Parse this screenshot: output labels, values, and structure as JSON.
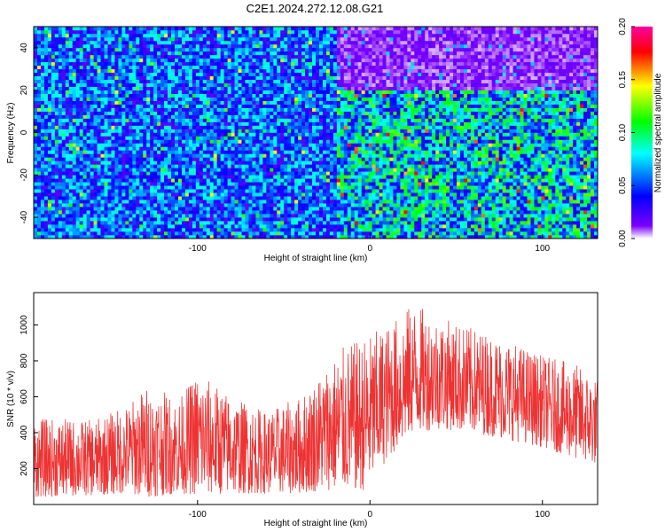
{
  "title": "C2E1.2024.272.12.08.G21",
  "chart_data": [
    {
      "type": "heatmap",
      "title": "C2E1.2024.272.12.08.G21",
      "xlabel": "Height of straight line (km)",
      "ylabel": "Frequency (Hz)",
      "xlim": [
        -195,
        132
      ],
      "ylim": [
        -50,
        50
      ],
      "x_ticks": [
        -100,
        0,
        100
      ],
      "y_ticks": [
        -40,
        -20,
        0,
        20,
        40
      ],
      "colorbar": {
        "label": "Normalized spectral amplitude",
        "range": [
          0.0,
          0.2
        ],
        "ticks": [
          "0.00",
          "0.05",
          "0.10",
          "0.15",
          "0.20"
        ],
        "colors": [
          "#ffffff",
          "#7a00ff",
          "#0000ff",
          "#00ffff",
          "#00ff00",
          "#ffff00",
          "#ff0000",
          "#ff00a0"
        ]
      },
      "regions": [
        {
          "x_range": [
            -195,
            -20
          ],
          "f_range": [
            -50,
            50
          ],
          "mean_amplitude": 0.05
        },
        {
          "x_range": [
            -20,
            132
          ],
          "f_range": [
            20,
            50
          ],
          "mean_amplitude": 0.01
        },
        {
          "x_range": [
            -20,
            132
          ],
          "f_range": [
            -50,
            20
          ],
          "mean_amplitude": 0.07
        }
      ]
    },
    {
      "type": "line",
      "xlabel": "Height of straight line (km)",
      "ylabel": "SNR (10 * v/v)",
      "xlim": [
        -195,
        132
      ],
      "ylim": [
        0,
        1180
      ],
      "x_ticks": [
        -100,
        0,
        100
      ],
      "y_ticks": [
        200,
        400,
        600,
        800,
        1000
      ],
      "color": "#ee3333",
      "envelope": {
        "x": [
          -195,
          -160,
          -140,
          -130,
          -110,
          -100,
          -80,
          -60,
          -40,
          -25,
          -15,
          -5,
          0,
          10,
          25,
          40,
          60,
          80,
          100,
          120,
          132
        ],
        "min": [
          40,
          50,
          60,
          40,
          60,
          50,
          60,
          60,
          60,
          80,
          80,
          70,
          110,
          250,
          400,
          420,
          400,
          360,
          320,
          250,
          220
        ],
        "max": [
          480,
          470,
          560,
          660,
          600,
          740,
          600,
          520,
          600,
          780,
          880,
          920,
          950,
          1000,
          1120,
          1050,
          980,
          920,
          830,
          780,
          700
        ]
      }
    }
  ]
}
